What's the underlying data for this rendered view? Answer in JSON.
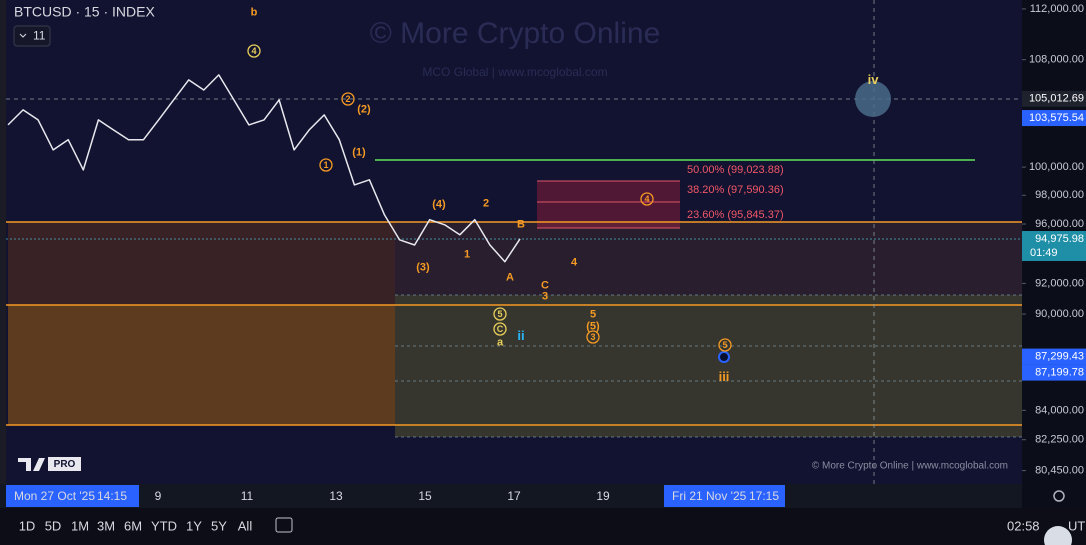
{
  "chart_data": {
    "type": "line",
    "title": "BTCUSD · 15 · INDEX",
    "interval_badge": "11",
    "color": "#e8e8ee",
    "log_scale": true,
    "values": [
      103070,
      104180,
      103440,
      101240,
      101980,
      99800,
      103440,
      102700,
      101980,
      101980,
      103440,
      104930,
      106450,
      105680,
      106830,
      104930,
      103070,
      103440,
      104930,
      101240,
      102700,
      103810,
      101980,
      98730,
      99090,
      96630,
      94920,
      94570,
      96300,
      95950,
      95260,
      96300,
      94570,
      93440,
      94980
    ],
    "ylim": [
      79910,
      112720
    ],
    "yticks": [
      {
        "value": 112000,
        "label": "112,000.00"
      },
      {
        "value": 108000,
        "label": "108,000.00"
      },
      {
        "value": 100000,
        "label": "100,000.00"
      },
      {
        "value": 98000,
        "label": "98,000.00"
      },
      {
        "value": 96000,
        "label": "96,000.00"
      },
      {
        "value": 92000,
        "label": "92,000.00"
      },
      {
        "value": 90000,
        "label": "90,000.00"
      },
      {
        "value": 84000,
        "label": "84,000.00"
      },
      {
        "value": 82250,
        "label": "82,250.00"
      },
      {
        "value": 80450,
        "label": "80,450.00"
      }
    ],
    "price_labels": [
      {
        "value": 105012.69,
        "label": "105,012.69",
        "color": "#1e222d"
      },
      {
        "value": 103575.54,
        "label": "103,575.54",
        "color": "#2962ff"
      },
      {
        "value": 94975.98,
        "label": "94,975.98",
        "color": "#1f8fa8"
      },
      {
        "value": 87299.43,
        "label": "87,299.43",
        "color": "#2962ff"
      },
      {
        "value": 87199.78,
        "label": "87,199.78",
        "color": "#2962ff"
      }
    ],
    "countdown": "01:49",
    "time_labels": [
      "Mon 27 Oct '25",
      "14:15",
      "9",
      "11",
      "13",
      "15",
      "17",
      "19",
      "Fri 21 Nov '25",
      "17:15"
    ],
    "fib_labels": [
      "50.00% (99,023.88)",
      "38.20% (97,590.36)",
      "23.60% (95,845.37)"
    ],
    "wave_labels": [
      {
        "text": "b",
        "color": "#f59a23",
        "circled": false
      },
      {
        "text": "4",
        "color": "#e8cf5a",
        "circled": true
      },
      {
        "text": "2",
        "color": "#f59a23",
        "circled": true
      },
      {
        "text": "(2)",
        "color": "#f59a23",
        "circled": false
      },
      {
        "text": "1",
        "color": "#f59a23",
        "circled": true
      },
      {
        "text": "(1)",
        "color": "#f59a23",
        "circled": false
      },
      {
        "text": "(4)",
        "color": "#f59a23",
        "circled": false
      },
      {
        "text": "2",
        "color": "#f59a23",
        "circled": false
      },
      {
        "text": "B",
        "color": "#f59a23",
        "circled": false
      },
      {
        "text": "(3)",
        "color": "#f59a23",
        "circled": false
      },
      {
        "text": "1",
        "color": "#f59a23",
        "circled": false
      },
      {
        "text": "A",
        "color": "#f59a23",
        "circled": false
      },
      {
        "text": "4",
        "color": "#f59a23",
        "circled": false
      },
      {
        "text": "C",
        "color": "#f59a23",
        "circled": false
      },
      {
        "text": "3",
        "color": "#f59a23",
        "circled": false
      },
      {
        "text": "5",
        "color": "#e8cf5a",
        "circled": true
      },
      {
        "text": "C",
        "color": "#e8cf5a",
        "circled": true
      },
      {
        "text": "a",
        "color": "#e8cf5a",
        "circled": false
      },
      {
        "text": "ii",
        "color": "#29b6f6",
        "circled": false
      },
      {
        "text": "5",
        "color": "#f59a23",
        "circled": false
      },
      {
        "text": "(5)",
        "color": "#f59a23",
        "circled": false
      },
      {
        "text": "3",
        "color": "#f59a23",
        "circled": true
      },
      {
        "text": "4",
        "color": "#f59a23",
        "circled": true
      },
      {
        "text": "5",
        "color": "#f59a23",
        "circled": true
      },
      {
        "text": "iii",
        "color": "#f59a23",
        "circled": false
      },
      {
        "text": "iv",
        "color": "#e8cf5a",
        "circled": false
      }
    ]
  },
  "watermark": {
    "title": "© More Crypto Online",
    "subtitle": "MCO Global  |  www.mcoglobal.com",
    "footer": "© More Crypto Online  |  www.mcoglobal.com"
  },
  "logo": {
    "badge": "PRO"
  },
  "toolbar": {
    "ranges": [
      "1D",
      "5D",
      "1M",
      "3M",
      "6M",
      "YTD",
      "1Y",
      "5Y",
      "All"
    ],
    "clock": "02:58",
    "timezone": "UTC"
  }
}
